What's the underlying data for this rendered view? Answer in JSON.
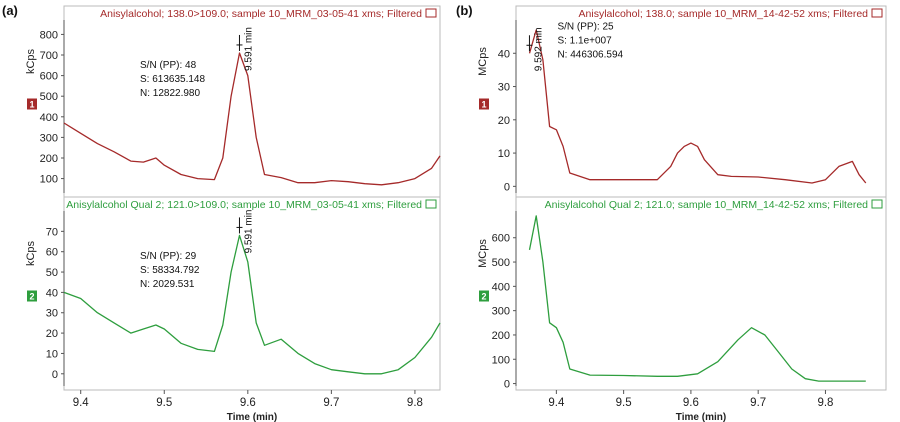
{
  "colors": {
    "red": "#a52a2a",
    "green": "#2e9e3e",
    "axis": "#555555",
    "text": "#222222"
  },
  "labels": {
    "a": "(a)",
    "b": "(b)",
    "xlabel": "Time (min)"
  },
  "chart_data": [
    {
      "id": "a1",
      "type": "line",
      "title": "Anisylalcohol; 138.0>109.0; sample 10_MRM_03-05-41 xms; Filtered",
      "ylabel": "kCps",
      "marker": "1",
      "xlim": [
        9.38,
        9.83
      ],
      "ylim": [
        30,
        870
      ],
      "yticks": [
        "100",
        "200",
        "300",
        "400",
        "500",
        "600",
        "700",
        "800"
      ],
      "peak_label": "9.591 min",
      "annotation": [
        "S/N (PP): 48",
        "S: 613635.148",
        "N: 12822.980"
      ],
      "series": [
        {
          "x": [
            9.38,
            9.4,
            9.42,
            9.44,
            9.46,
            9.475,
            9.49,
            9.5,
            9.52,
            9.54,
            9.56,
            9.57,
            9.58,
            9.59,
            9.6,
            9.61,
            9.62,
            9.64,
            9.66,
            9.68,
            9.7,
            9.72,
            9.74,
            9.76,
            9.78,
            9.8,
            9.82,
            9.83
          ],
          "y": [
            370,
            320,
            270,
            230,
            185,
            180,
            200,
            165,
            120,
            100,
            95,
            200,
            500,
            710,
            600,
            300,
            120,
            105,
            80,
            80,
            90,
            85,
            75,
            70,
            80,
            100,
            150,
            210
          ]
        }
      ]
    },
    {
      "id": "a2",
      "type": "line",
      "title": "Anisylalcohol Qual 2; 121.0>109.0; sample 10_MRM_03-05-41 xms; Filtered",
      "ylabel": "kCps",
      "marker": "2",
      "xlim": [
        9.38,
        9.83
      ],
      "ylim": [
        -6,
        80
      ],
      "yticks": [
        "0",
        "10",
        "20",
        "30",
        "40",
        "50",
        "60",
        "70"
      ],
      "xticks": [
        "9.4",
        "9.5",
        "9.6",
        "9.7",
        "9.8"
      ],
      "peak_label": "9.591 min",
      "annotation": [
        "S/N (PP): 29",
        "S: 58334.792",
        "N: 2029.531"
      ],
      "series": [
        {
          "x": [
            9.38,
            9.4,
            9.42,
            9.44,
            9.46,
            9.475,
            9.49,
            9.5,
            9.52,
            9.54,
            9.56,
            9.57,
            9.58,
            9.59,
            9.6,
            9.61,
            9.62,
            9.64,
            9.66,
            9.68,
            9.7,
            9.72,
            9.74,
            9.76,
            9.78,
            9.8,
            9.82,
            9.83
          ],
          "y": [
            40,
            37,
            30,
            25,
            20,
            22,
            24,
            22,
            15,
            12,
            11,
            24,
            50,
            68,
            55,
            25,
            14,
            17,
            10,
            5,
            2,
            1,
            0,
            0,
            2,
            8,
            18,
            25
          ]
        }
      ]
    },
    {
      "id": "b1",
      "type": "line",
      "title": "Anisylalcohol; 138.0; sample 10_MRM_14-42-52 xms; Filtered",
      "ylabel": "MCps",
      "marker": "1",
      "xlim": [
        9.34,
        9.89
      ],
      "ylim": [
        -2,
        50
      ],
      "yticks": [
        "0",
        "10",
        "20",
        "30",
        "40"
      ],
      "peak_label": "9.592 min",
      "annotation": [
        "S/N (PP): 25",
        "S: 1.1e+007",
        "N: 446306.594"
      ],
      "series": [
        {
          "x": [
            9.36,
            9.37,
            9.38,
            9.39,
            9.4,
            9.41,
            9.42,
            9.45,
            9.5,
            9.55,
            9.57,
            9.58,
            9.59,
            9.6,
            9.61,
            9.62,
            9.64,
            9.66,
            9.7,
            9.74,
            9.78,
            9.8,
            9.82,
            9.84,
            9.85,
            9.86
          ],
          "y": [
            40,
            47,
            38,
            18,
            17,
            12,
            4,
            2,
            2,
            2,
            6,
            10,
            12,
            13,
            12,
            8,
            3.5,
            3,
            2.8,
            2,
            1,
            2,
            6,
            7.5,
            3.5,
            1
          ]
        }
      ]
    },
    {
      "id": "b2",
      "type": "line",
      "title": "Anisylalcohol Qual 2; 121.0; sample 10_MRM_14-42-52 xms; Filtered",
      "ylabel": "MCps",
      "marker": "2",
      "xlim": [
        9.34,
        9.89
      ],
      "ylim": [
        -10,
        710
      ],
      "yticks": [
        "0",
        "100",
        "200",
        "300",
        "400",
        "500",
        "600"
      ],
      "xticks": [
        "9.4",
        "9.5",
        "9.6",
        "9.7",
        "9.8"
      ],
      "series": [
        {
          "x": [
            9.36,
            9.37,
            9.38,
            9.39,
            9.4,
            9.41,
            9.42,
            9.45,
            9.5,
            9.55,
            9.58,
            9.61,
            9.64,
            9.67,
            9.69,
            9.71,
            9.73,
            9.75,
            9.77,
            9.79,
            9.82,
            9.86
          ],
          "y": [
            550,
            690,
            500,
            250,
            230,
            170,
            60,
            35,
            33,
            30,
            30,
            40,
            90,
            180,
            230,
            200,
            130,
            60,
            20,
            10,
            10,
            10
          ]
        }
      ]
    }
  ]
}
